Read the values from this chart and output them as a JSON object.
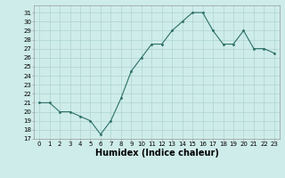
{
  "x": [
    0,
    1,
    2,
    3,
    4,
    5,
    6,
    7,
    8,
    9,
    10,
    11,
    12,
    13,
    14,
    15,
    16,
    17,
    18,
    19,
    20,
    21,
    22,
    23
  ],
  "y": [
    21,
    21,
    20,
    20,
    19.5,
    19,
    17.5,
    19,
    21.5,
    24.5,
    26,
    27.5,
    27.5,
    29,
    30,
    31,
    31,
    29,
    27.5,
    27.5,
    29,
    27,
    27,
    26.5
  ],
  "line_color": "#2d7068",
  "marker_color": "#2d7068",
  "bg_color": "#ceecea",
  "grid_color": "#aed4d0",
  "xlabel": "Humidex (Indice chaleur)",
  "xlabel_fontsize": 7,
  "tick_fontsize": 5,
  "ylabel_ticks": [
    17,
    18,
    19,
    20,
    21,
    22,
    23,
    24,
    25,
    26,
    27,
    28,
    29,
    30,
    31
  ],
  "xlim": [
    -0.5,
    23.5
  ],
  "ylim": [
    17,
    31.8
  ],
  "figsize": [
    3.2,
    2.0
  ],
  "dpi": 100
}
